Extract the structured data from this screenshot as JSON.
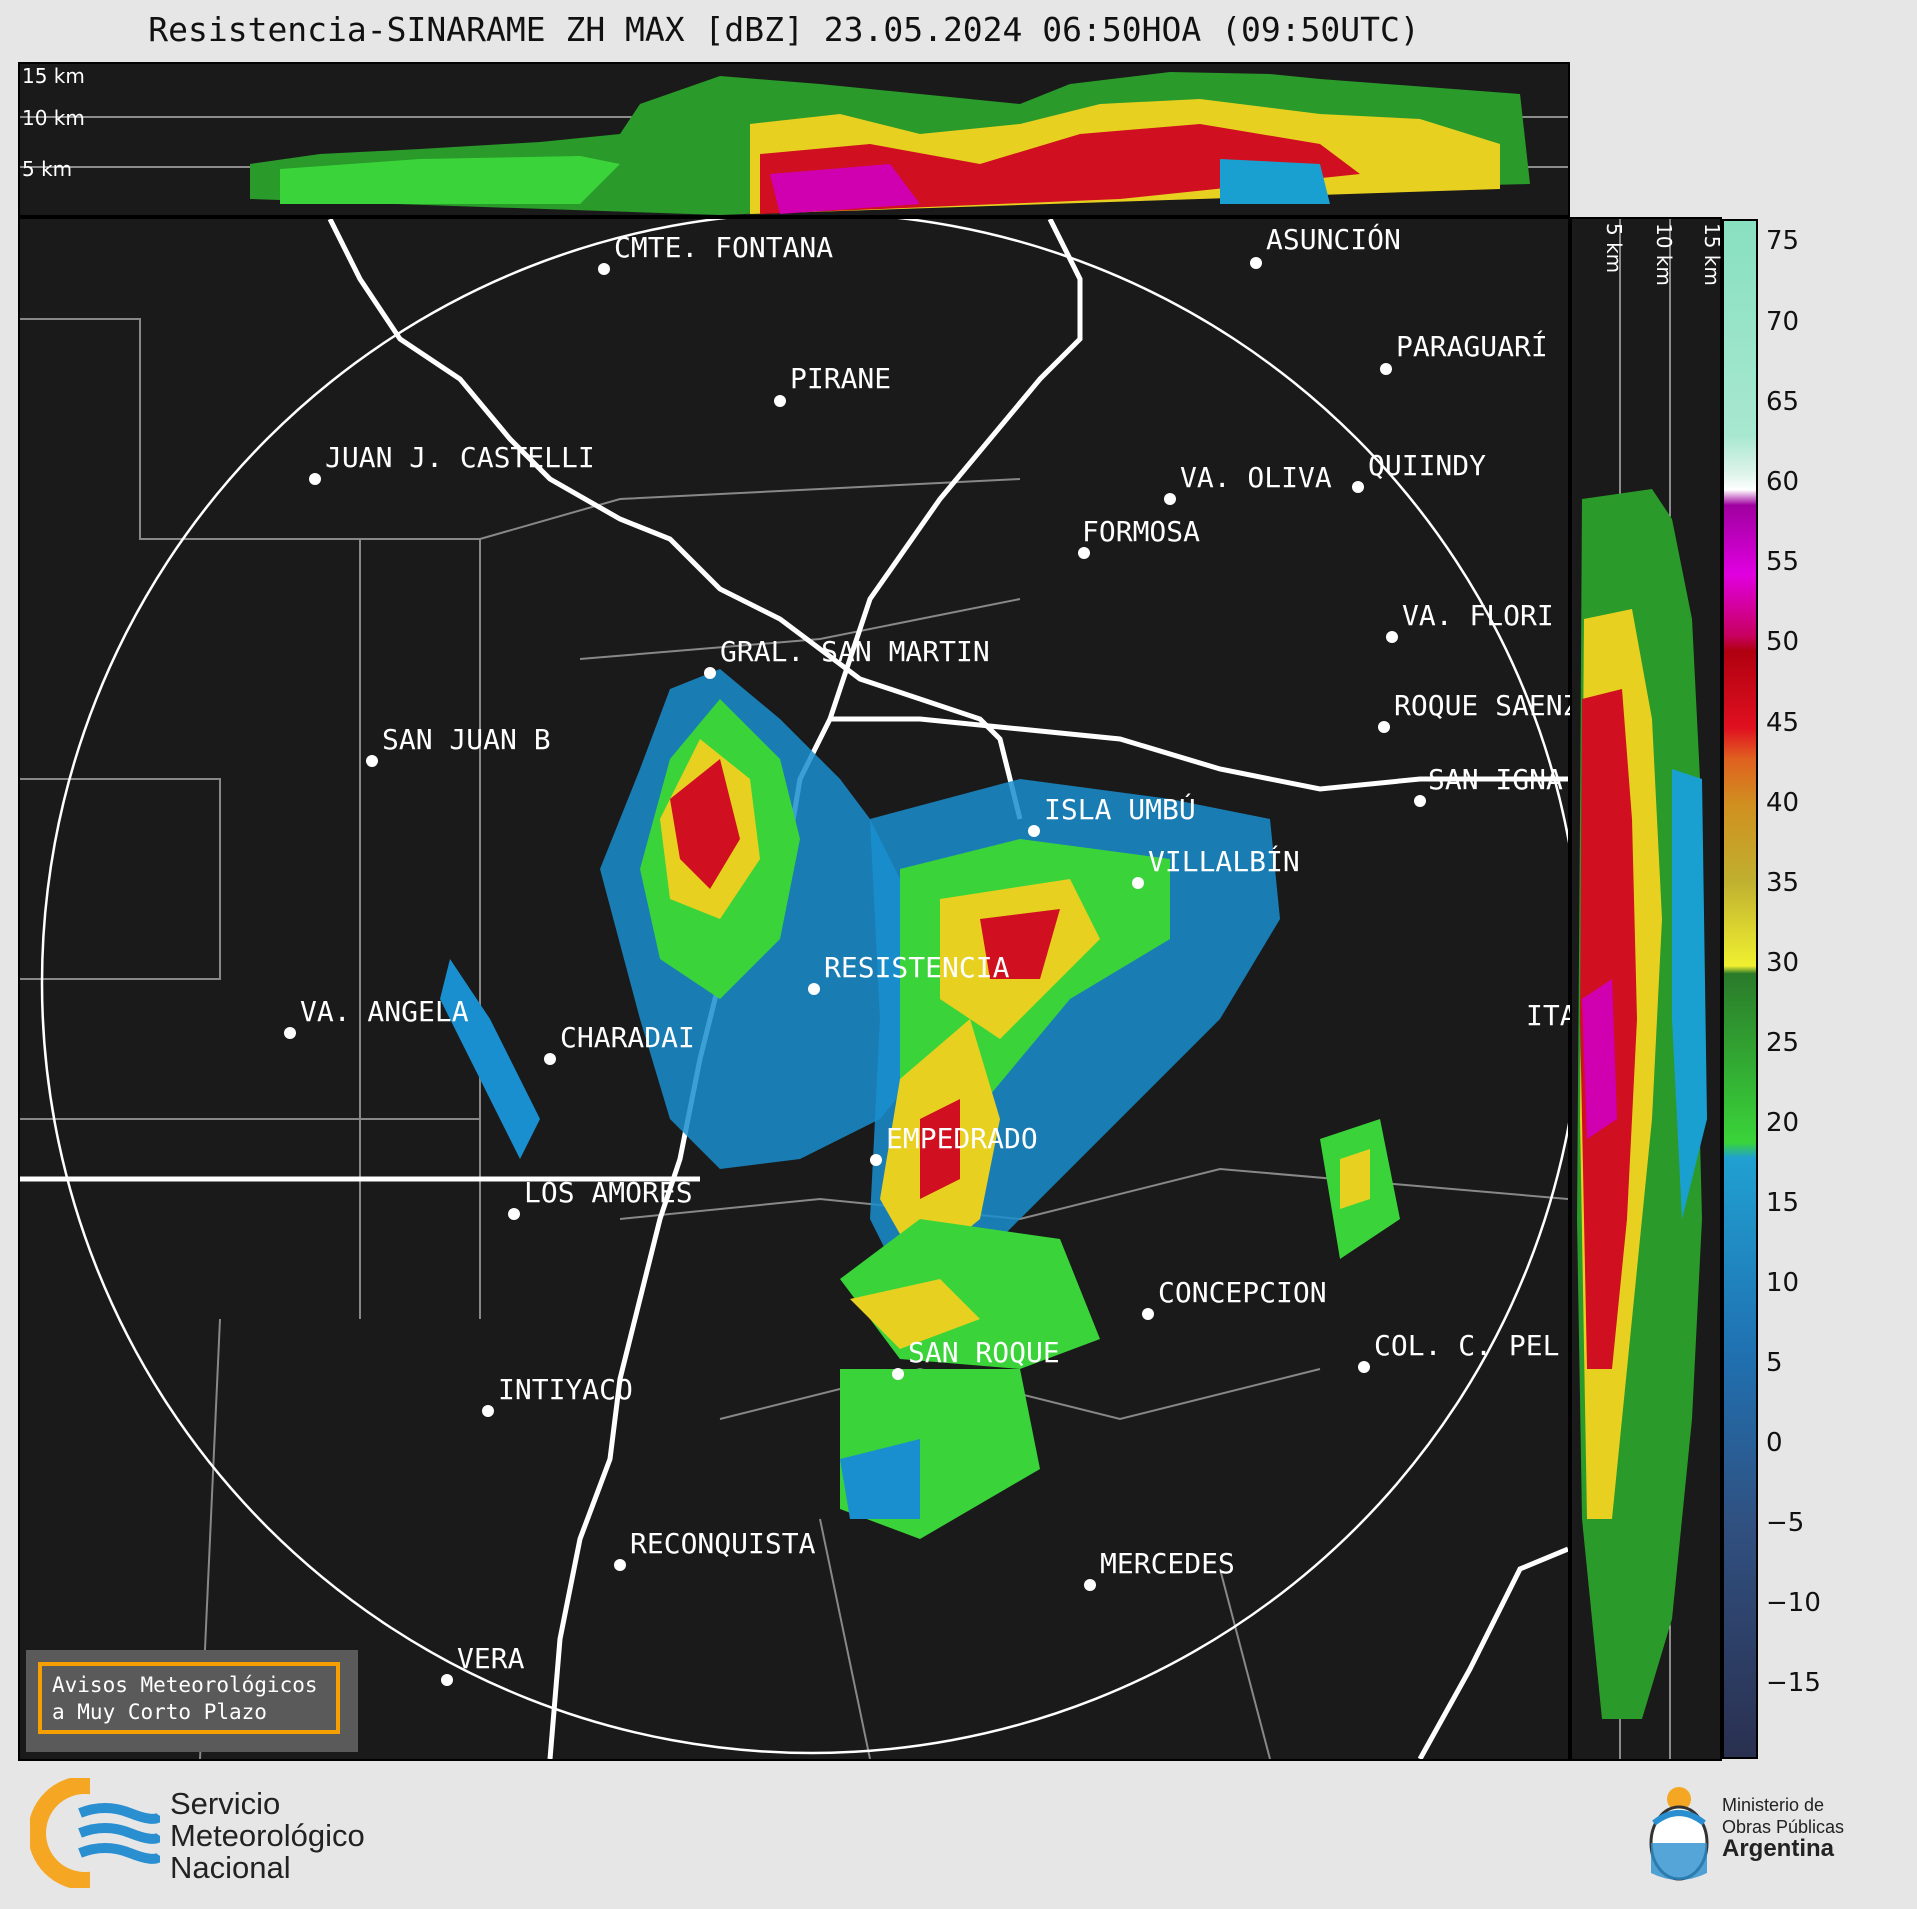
{
  "title": "Resistencia-SINARAME ZH MAX [dBZ] 23.05.2024 06:50HOA (09:50UTC)",
  "top_profile": {
    "altitude_labels": [
      "15 km",
      "10 km",
      "5 km"
    ]
  },
  "side_profile": {
    "altitude_labels": [
      "5 km",
      "10 km",
      "15 km"
    ]
  },
  "colorbar": {
    "unit": "dBZ",
    "ticks": [
      "75",
      "70",
      "65",
      "60",
      "55",
      "50",
      "45",
      "40",
      "35",
      "30",
      "25",
      "20",
      "15",
      "10",
      "5",
      "0",
      "−5",
      "−10",
      "−15"
    ]
  },
  "cities": [
    {
      "name": "CMTE. FONTANA"
    },
    {
      "name": "PIRANE"
    },
    {
      "name": "JUAN J. CASTELLI"
    },
    {
      "name": "ASUNCIÓN"
    },
    {
      "name": "PARAGUARÍ"
    },
    {
      "name": "VA. OLIVA"
    },
    {
      "name": "QUIINDY"
    },
    {
      "name": "FORMOSA"
    },
    {
      "name": "GRAL. SAN MARTIN"
    },
    {
      "name": "VA. FLORI"
    },
    {
      "name": "SAN JUAN B"
    },
    {
      "name": "ROQUE SAENZ PEÑA"
    },
    {
      "name": "SAN IGNA"
    },
    {
      "name": "ISLA UMBÚ"
    },
    {
      "name": "VILLALBÍN"
    },
    {
      "name": "RESISTENCIA"
    },
    {
      "name": "VA. ANGELA"
    },
    {
      "name": "CHARADAI"
    },
    {
      "name": "ITA"
    },
    {
      "name": "EMPEDRADO"
    },
    {
      "name": "LOS AMORES"
    },
    {
      "name": "CONCEPCION"
    },
    {
      "name": "SAN ROQUE"
    },
    {
      "name": "COL. C. PEL"
    },
    {
      "name": "INTIYACO"
    },
    {
      "name": "RECONQUISTA"
    },
    {
      "name": "MERCEDES"
    },
    {
      "name": "VERA"
    }
  ],
  "aviso": {
    "line1": "Avisos Meteorológicos",
    "line2": "a Muy Corto Plazo"
  },
  "smn": {
    "line1": "Servicio",
    "line2": "Meteorológico",
    "line3": "Nacional"
  },
  "gov": {
    "line1": "Ministerio de",
    "line2": "Obras Públicas",
    "line3": "Argentina"
  },
  "colors": {
    "background": "#1a1a1a",
    "smn_orange": "#f5a623",
    "smn_blue": "#2a8fd0",
    "aviso_border": "#f5a000"
  }
}
